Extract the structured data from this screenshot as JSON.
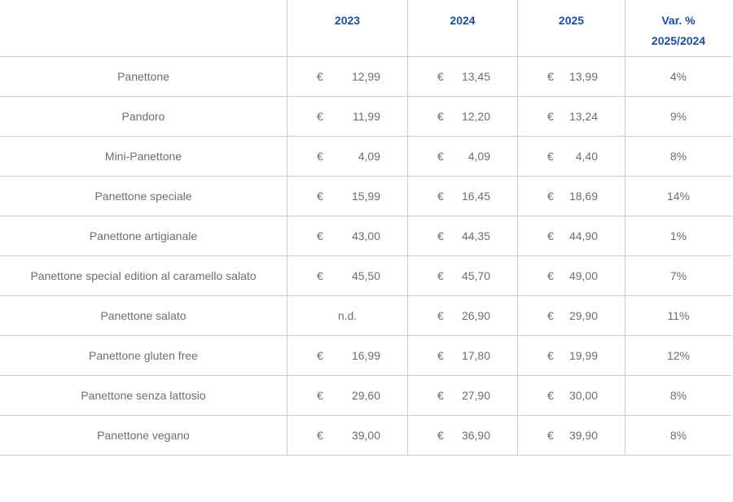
{
  "chart_data": {
    "type": "table",
    "title": "",
    "currency_symbol": "€",
    "not_available_label": "n.d.",
    "header": {
      "product": "",
      "y2023": "2023",
      "y2024": "2024",
      "y2025": "2025",
      "var_line1": "Var. %",
      "var_line2": "2025/2024"
    },
    "columns": [
      "",
      "2023",
      "2024",
      "2025",
      "Var. % 2025/2024"
    ],
    "rows": [
      {
        "product": "Panettone",
        "p2023": "12,99",
        "p2024": "13,45",
        "p2025": "13,99",
        "var": "4%"
      },
      {
        "product": "Pandoro",
        "p2023": "11,99",
        "p2024": "12,20",
        "p2025": "13,24",
        "var": "9%"
      },
      {
        "product": "Mini-Panettone",
        "p2023": "4,09",
        "p2024": "4,09",
        "p2025": "4,40",
        "var": "8%"
      },
      {
        "product": "Panettone speciale",
        "p2023": "15,99",
        "p2024": "16,45",
        "p2025": "18,69",
        "var": "14%"
      },
      {
        "product": "Panettone artigianale",
        "p2023": "43,00",
        "p2024": "44,35",
        "p2025": "44,90",
        "var": "1%"
      },
      {
        "product": "Panettone special edition al caramello salato",
        "p2023": "45,50",
        "p2024": "45,70",
        "p2025": "49,00",
        "var": "7%"
      },
      {
        "product": "Panettone salato",
        "p2023": "n.d.",
        "p2024": "26,90",
        "p2025": "29,90",
        "var": "11%"
      },
      {
        "product": "Panettone gluten free",
        "p2023": "16,99",
        "p2024": "17,80",
        "p2025": "19,99",
        "var": "12%"
      },
      {
        "product": "Panettone senza lattosio",
        "p2023": "29,60",
        "p2024": "27,90",
        "p2025": "30,00",
        "var": "8%"
      },
      {
        "product": "Panettone vegano",
        "p2023": "39,00",
        "p2024": "36,90",
        "p2025": "39,90",
        "var": "8%"
      }
    ],
    "colors": {
      "header_text": "#1c4e9c",
      "body_text": "#6e6e6e",
      "border": "#cccccc",
      "background": "#ffffff"
    },
    "layout": {
      "grid": true,
      "header_position": "top"
    }
  }
}
